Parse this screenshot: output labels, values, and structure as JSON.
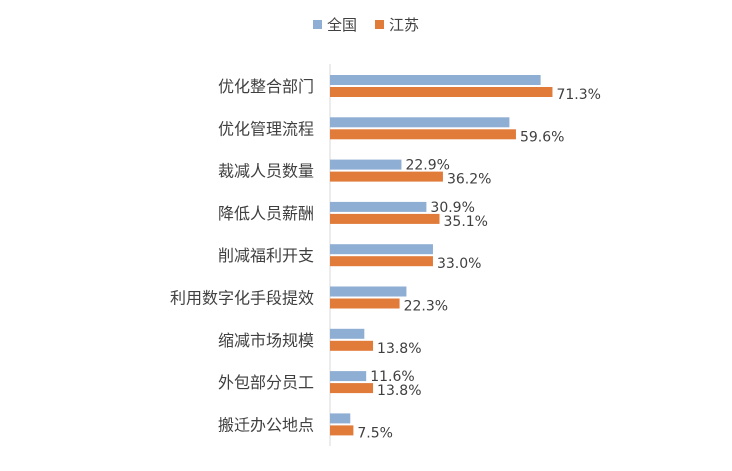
{
  "chart_data": {
    "type": "bar",
    "orientation": "horizontal",
    "categories": [
      "优化整合部门",
      "优化管理流程",
      "裁减人员数量",
      "降低人员薪酬",
      "削减福利开支",
      "利用数字化手段提效",
      "缩减市场规模",
      "外包部分员工",
      "搬迁办公地点"
    ],
    "series": [
      {
        "name": "全国",
        "color": "#8eaed4",
        "values": [
          67.5,
          57.5,
          22.9,
          30.9,
          33.0,
          24.5,
          11.0,
          11.6,
          6.5
        ],
        "labels": [
          null,
          null,
          "22.9%",
          "30.9%",
          null,
          null,
          null,
          "11.6%",
          null
        ]
      },
      {
        "name": "江苏",
        "color": "#e07b39",
        "values": [
          71.3,
          59.6,
          36.2,
          35.1,
          33.0,
          22.3,
          13.8,
          13.8,
          7.5
        ],
        "labels": [
          "71.3%",
          "59.6%",
          "36.2%",
          "35.1%",
          "33.0%",
          "22.3%",
          "13.8%",
          "13.8%",
          "7.5%"
        ]
      }
    ],
    "legend_position": "top",
    "grid": false
  }
}
